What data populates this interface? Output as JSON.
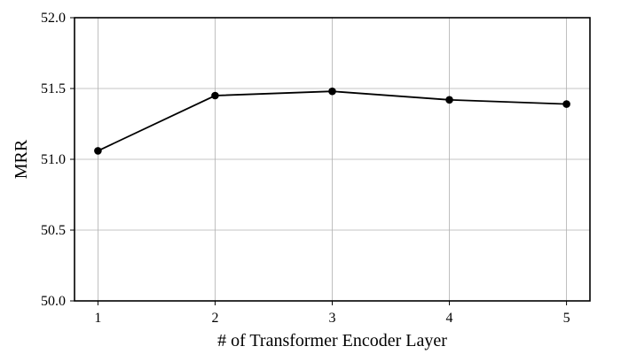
{
  "chart_data": {
    "type": "line",
    "title": "",
    "xlabel": "# of Transformer Encoder Layer",
    "ylabel": "MRR",
    "x": [
      1,
      2,
      3,
      4,
      5
    ],
    "x_ticks": [
      "1",
      "2",
      "3",
      "4",
      "5"
    ],
    "xlim": [
      0.8,
      5.2
    ],
    "ylim": [
      50.0,
      52.0
    ],
    "y_ticks": [
      "50.0",
      "50.5",
      "51.0",
      "51.5",
      "52.0"
    ],
    "grid": true,
    "legend": "none",
    "series": [
      {
        "values": [
          51.06,
          51.45,
          51.48,
          51.42,
          51.39
        ],
        "color": "#000000",
        "marker": "circle"
      }
    ]
  }
}
